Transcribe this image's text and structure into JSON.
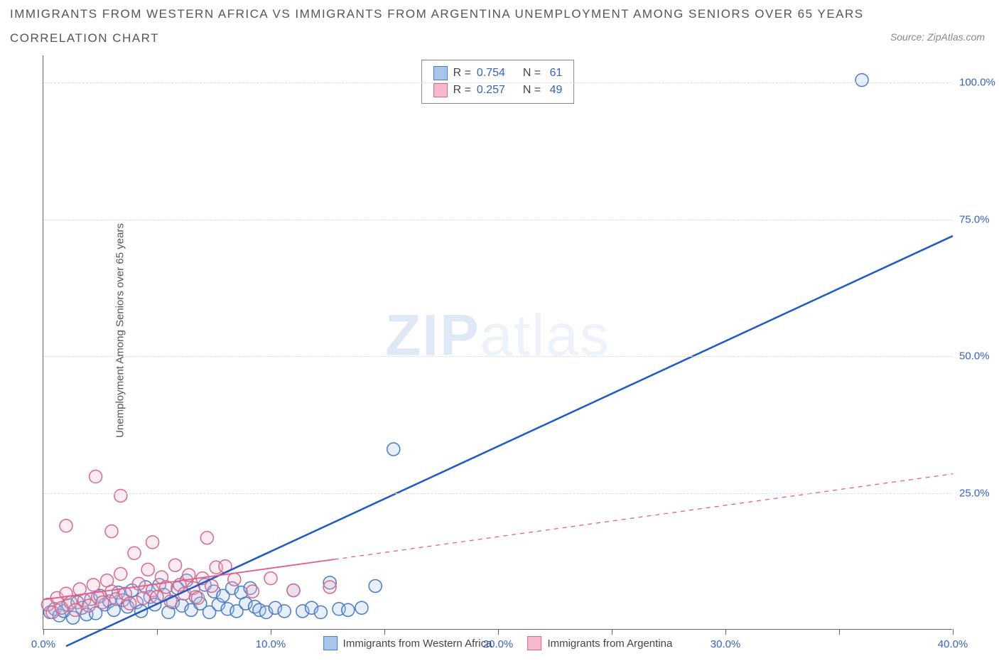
{
  "title": "IMMIGRANTS FROM WESTERN AFRICA VS IMMIGRANTS FROM ARGENTINA UNEMPLOYMENT AMONG SENIORS OVER 65 YEARS",
  "subtitle": "CORRELATION CHART",
  "source": "Source: ZipAtlas.com",
  "watermark_bold": "ZIP",
  "watermark_rest": "atlas",
  "y_axis_title": "Unemployment Among Seniors over 65 years",
  "chart": {
    "type": "scatter",
    "xlim": [
      0,
      40
    ],
    "ylim": [
      0,
      105
    ],
    "xtick_step": 10,
    "ytick_step": 25,
    "xtick_labels": [
      "0.0%",
      "10.0%",
      "20.0%",
      "30.0%",
      "40.0%"
    ],
    "ytick_labels": [
      "25.0%",
      "50.0%",
      "75.0%",
      "100.0%"
    ],
    "ytick_values": [
      25,
      50,
      75,
      100
    ],
    "xtick_values": [
      0,
      10,
      20,
      30,
      40
    ],
    "grid_color": "#dddddd",
    "axis_color": "#666666",
    "background_color": "#ffffff",
    "marker_radius": 9,
    "marker_stroke_width": 1.5,
    "marker_fill_opacity": 0.28,
    "series": [
      {
        "name": "Immigrants from Western Africa",
        "color_stroke": "#4a7ac8",
        "color_fill": "#a8c5ec",
        "trend_color": "#1e5ac4",
        "trend_width": 2.5,
        "R": 0.754,
        "N": 61,
        "trend": {
          "x0": 1.0,
          "y0": -3,
          "x1": 40,
          "y1": 72,
          "solid_until_x": 40
        },
        "points": [
          [
            0.3,
            3.2
          ],
          [
            0.5,
            3.8
          ],
          [
            0.7,
            2.6
          ],
          [
            0.9,
            3.4
          ],
          [
            1.1,
            4.5
          ],
          [
            1.3,
            2.2
          ],
          [
            1.5,
            5.0
          ],
          [
            1.7,
            4.0
          ],
          [
            1.9,
            2.8
          ],
          [
            2.1,
            5.6
          ],
          [
            2.3,
            3.0
          ],
          [
            2.5,
            6.2
          ],
          [
            2.7,
            4.6
          ],
          [
            2.9,
            5.2
          ],
          [
            3.1,
            3.6
          ],
          [
            3.3,
            6.8
          ],
          [
            3.5,
            5.4
          ],
          [
            3.7,
            4.2
          ],
          [
            3.9,
            7.2
          ],
          [
            4.1,
            5.0
          ],
          [
            4.3,
            3.4
          ],
          [
            4.5,
            7.8
          ],
          [
            4.7,
            6.0
          ],
          [
            4.9,
            4.6
          ],
          [
            5.1,
            8.2
          ],
          [
            5.3,
            6.4
          ],
          [
            5.5,
            3.2
          ],
          [
            5.7,
            5.0
          ],
          [
            5.9,
            7.6
          ],
          [
            6.1,
            4.4
          ],
          [
            6.3,
            9.0
          ],
          [
            6.5,
            3.6
          ],
          [
            6.7,
            6.0
          ],
          [
            6.9,
            4.8
          ],
          [
            7.1,
            8.2
          ],
          [
            7.3,
            3.2
          ],
          [
            7.5,
            7.0
          ],
          [
            7.7,
            4.6
          ],
          [
            7.9,
            6.2
          ],
          [
            8.1,
            3.8
          ],
          [
            8.3,
            7.6
          ],
          [
            8.5,
            3.4
          ],
          [
            8.7,
            6.8
          ],
          [
            8.9,
            4.8
          ],
          [
            9.1,
            7.6
          ],
          [
            9.3,
            4.2
          ],
          [
            9.5,
            3.6
          ],
          [
            9.8,
            3.2
          ],
          [
            10.2,
            4.0
          ],
          [
            10.6,
            3.4
          ],
          [
            11.0,
            7.2
          ],
          [
            11.4,
            3.4
          ],
          [
            11.8,
            4.0
          ],
          [
            12.2,
            3.2
          ],
          [
            12.6,
            8.6
          ],
          [
            13.0,
            3.8
          ],
          [
            13.4,
            3.6
          ],
          [
            14.0,
            4.0
          ],
          [
            14.6,
            8.0
          ],
          [
            15.4,
            33.0
          ],
          [
            36.0,
            100.5
          ]
        ]
      },
      {
        "name": "Immigrants from Argentina",
        "color_stroke": "#d46a8a",
        "color_fill": "#f5b8cc",
        "trend_color": "#e85a88",
        "trend_width": 1.8,
        "R": 0.257,
        "N": 49,
        "trend": {
          "x0": 0,
          "y0": 5.5,
          "x1": 40,
          "y1": 28.5,
          "solid_until_x": 12.8
        },
        "points": [
          [
            0.2,
            4.6
          ],
          [
            0.4,
            3.2
          ],
          [
            0.6,
            5.8
          ],
          [
            0.8,
            4.0
          ],
          [
            1.0,
            6.6
          ],
          [
            1.2,
            5.0
          ],
          [
            1.4,
            3.6
          ],
          [
            1.6,
            7.4
          ],
          [
            1.8,
            5.4
          ],
          [
            2.0,
            4.4
          ],
          [
            2.2,
            8.2
          ],
          [
            2.4,
            6.0
          ],
          [
            2.6,
            5.0
          ],
          [
            2.8,
            9.0
          ],
          [
            3.0,
            7.0
          ],
          [
            3.2,
            5.6
          ],
          [
            3.4,
            10.2
          ],
          [
            3.6,
            6.6
          ],
          [
            3.8,
            4.8
          ],
          [
            4.0,
            14.0
          ],
          [
            4.2,
            8.4
          ],
          [
            4.4,
            5.8
          ],
          [
            4.6,
            11.0
          ],
          [
            4.8,
            7.2
          ],
          [
            5.0,
            6.0
          ],
          [
            5.2,
            9.6
          ],
          [
            5.4,
            7.8
          ],
          [
            5.6,
            5.2
          ],
          [
            5.8,
            11.8
          ],
          [
            6.0,
            8.2
          ],
          [
            6.2,
            6.6
          ],
          [
            6.4,
            10.0
          ],
          [
            6.6,
            7.6
          ],
          [
            6.8,
            5.8
          ],
          [
            7.0,
            9.4
          ],
          [
            7.2,
            16.8
          ],
          [
            7.4,
            8.0
          ],
          [
            7.6,
            11.4
          ],
          [
            1.0,
            19.0
          ],
          [
            2.3,
            28.0
          ],
          [
            3.4,
            24.5
          ],
          [
            3.0,
            18.0
          ],
          [
            4.8,
            16.0
          ],
          [
            8.0,
            11.6
          ],
          [
            8.4,
            9.2
          ],
          [
            9.2,
            7.0
          ],
          [
            10.0,
            9.4
          ],
          [
            11.0,
            7.2
          ],
          [
            12.6,
            7.8
          ]
        ]
      }
    ]
  },
  "stats_box": {
    "rows": [
      {
        "swatch_fill": "#a8c5ec",
        "swatch_stroke": "#4a7ac8",
        "R": "0.754",
        "N": "61"
      },
      {
        "swatch_fill": "#f5b8cc",
        "swatch_stroke": "#d46a8a",
        "R": "0.257",
        "N": "49"
      }
    ],
    "labels": {
      "R": "R =",
      "N": "N ="
    }
  },
  "bottom_legend": [
    {
      "swatch_fill": "#a8c5ec",
      "swatch_stroke": "#4a7ac8",
      "label": "Immigrants from Western Africa"
    },
    {
      "swatch_fill": "#f5b8cc",
      "swatch_stroke": "#d46a8a",
      "label": "Immigrants from Argentina"
    }
  ]
}
